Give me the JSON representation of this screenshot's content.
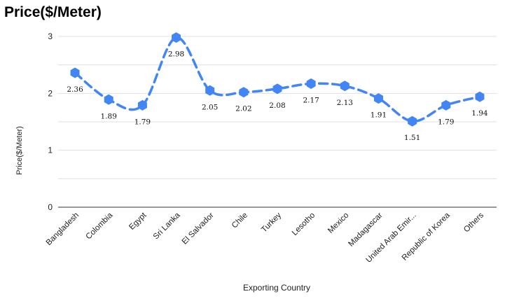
{
  "chart_data": {
    "type": "line",
    "title": "Price($/Meter)",
    "xlabel": "Exporting Country",
    "ylabel": "Price($/Meter)",
    "ylim": [
      0,
      3
    ],
    "yticks": [
      0,
      1,
      2,
      3
    ],
    "grid": true,
    "line_style": "dashed-smooth",
    "marker": "hexagon",
    "categories": [
      "Bangladesh",
      "Colombia",
      "Egypt",
      "Sri Lanka",
      "El Salvador",
      "Chile",
      "Turkey",
      "Lesotho",
      "Mexico",
      "Madagascar",
      "United Arab Emir...",
      "Republic of Korea",
      "Others"
    ],
    "series": [
      {
        "name": "",
        "values": [
          2.36,
          1.89,
          1.79,
          2.98,
          2.05,
          2.02,
          2.08,
          2.17,
          2.13,
          1.91,
          1.51,
          1.79,
          1.94
        ]
      }
    ],
    "data_labels": [
      "2.36",
      "1.89",
      "1.79",
      "2.98",
      "2.05",
      "2.02",
      "2.08",
      "2.17",
      "2.13",
      "1.91",
      "1.51",
      "1.79",
      "1.94"
    ],
    "colors": {
      "series": "#4285f4",
      "grid": "#e0e0e0",
      "axis": "#333333"
    }
  }
}
